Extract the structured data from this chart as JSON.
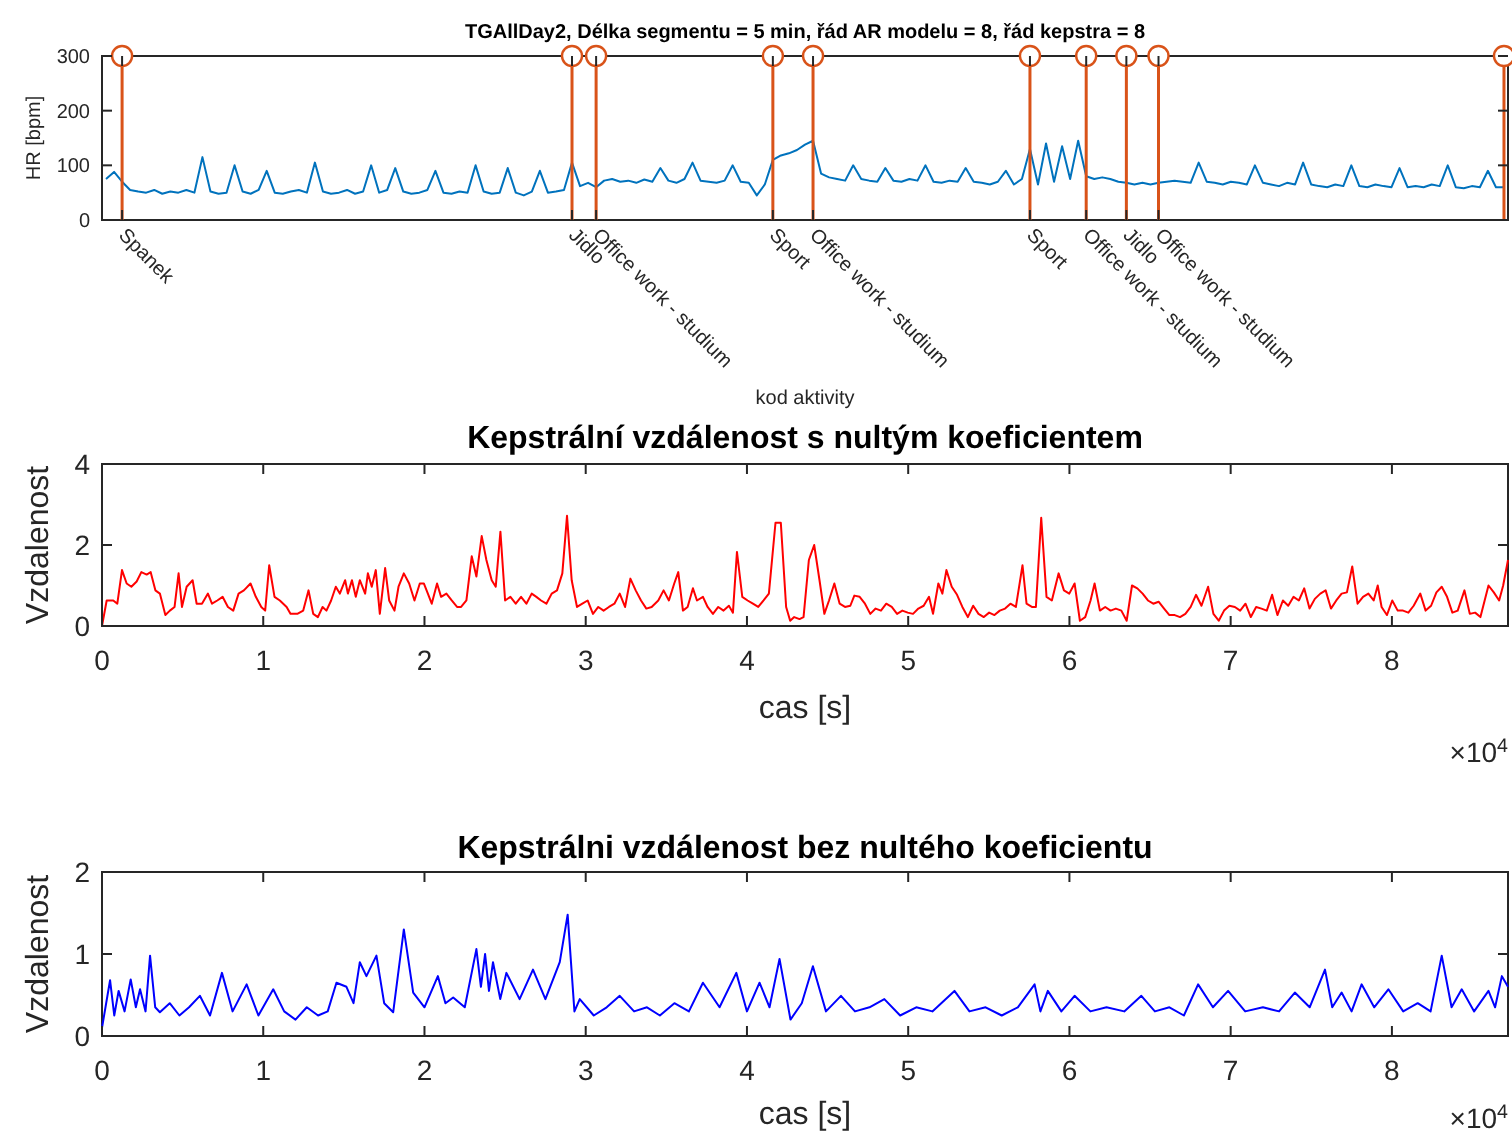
{
  "chart_data": [
    {
      "type": "line",
      "title": "TGAllDay2, Délka segmentu = 5 min, řád AR modelu = 8, řád kepstra = 8",
      "xlabel": "kod aktivity",
      "ylabel": "HR [bpm]",
      "ylim": [
        0,
        300
      ],
      "yticks": [
        0,
        100,
        200,
        300
      ],
      "categories": [
        null,
        null,
        "Spanek",
        null,
        null,
        null,
        null,
        null,
        null,
        null,
        null,
        null,
        null,
        null,
        null,
        null,
        null,
        null,
        null,
        null,
        null,
        null,
        null,
        null,
        null,
        null,
        null,
        null,
        null,
        null,
        null,
        null,
        null,
        null,
        null,
        null,
        null,
        null,
        null,
        null,
        null,
        null,
        null,
        null,
        null,
        null,
        null,
        null,
        null,
        null,
        null,
        null,
        null,
        null,
        null,
        null,
        null,
        null,
        "Jidlo",
        null,
        null,
        "Office work - studium",
        null,
        null,
        null,
        null,
        null,
        null,
        null,
        null,
        null,
        null,
        null,
        null,
        null,
        null,
        null,
        null,
        null,
        null,
        null,
        null,
        null,
        "Sport",
        null,
        null,
        null,
        null,
        "Office work - studium",
        null,
        null,
        null,
        null,
        null,
        null,
        null,
        null,
        null,
        null,
        null,
        null,
        null,
        null,
        null,
        null,
        null,
        null,
        null,
        null,
        null,
        null,
        null,
        null,
        null,
        null,
        "Sport",
        null,
        null,
        null,
        null,
        null,
        null,
        "Office work - studium",
        null,
        null,
        null,
        null,
        "Jidlo",
        null,
        null,
        null,
        "Office work - studium",
        null,
        null,
        null,
        null,
        null,
        null,
        null,
        null,
        null,
        null,
        null,
        null,
        null,
        null,
        null,
        null,
        null,
        null,
        null,
        null,
        null,
        null,
        null,
        null,
        null,
        null,
        null,
        null,
        null,
        null,
        null,
        null,
        null,
        null,
        null,
        null,
        null,
        null,
        null,
        null,
        null,
        null,
        null
      ],
      "series": [
        {
          "color": "#0072bd",
          "values": [
            75,
            88,
            70,
            55,
            52,
            50,
            55,
            48,
            52,
            50,
            55,
            50,
            115,
            52,
            48,
            50,
            100,
            52,
            48,
            55,
            90,
            50,
            48,
            52,
            55,
            50,
            105,
            52,
            48,
            50,
            55,
            48,
            52,
            100,
            50,
            55,
            95,
            52,
            48,
            50,
            55,
            90,
            50,
            48,
            52,
            50,
            100,
            52,
            48,
            50,
            95,
            50,
            45,
            52,
            90,
            50,
            52,
            55,
            105,
            62,
            68,
            60,
            72,
            75,
            70,
            72,
            68,
            74,
            70,
            95,
            72,
            68,
            75,
            105,
            72,
            70,
            68,
            72,
            100,
            70,
            68,
            45,
            65,
            110,
            118,
            122,
            128,
            138,
            145,
            85,
            78,
            75,
            72,
            100,
            75,
            72,
            70,
            95,
            72,
            70,
            75,
            72,
            100,
            70,
            68,
            72,
            70,
            95,
            70,
            68,
            65,
            70,
            90,
            65,
            75,
            130,
            65,
            140,
            70,
            135,
            75,
            145,
            80,
            75,
            78,
            75,
            70,
            68,
            65,
            68,
            65,
            68,
            70,
            72,
            70,
            68,
            105,
            70,
            68,
            65,
            70,
            68,
            65,
            100,
            68,
            65,
            62,
            68,
            65,
            105,
            65,
            62,
            60,
            65,
            62,
            100,
            62,
            60,
            65,
            62,
            60,
            95,
            60,
            62,
            60,
            65,
            62,
            100,
            60,
            58,
            62,
            60,
            90,
            60,
            60
          ]
        },
        {
          "type": "lollipop",
          "marker": "circle",
          "color": "#d95319",
          "values": [
            null,
            null,
            300,
            null,
            null,
            null,
            null,
            null,
            null,
            null,
            null,
            null,
            null,
            null,
            null,
            null,
            null,
            null,
            null,
            null,
            null,
            null,
            null,
            null,
            null,
            null,
            null,
            null,
            null,
            null,
            null,
            null,
            null,
            null,
            null,
            null,
            null,
            null,
            null,
            null,
            null,
            null,
            null,
            null,
            null,
            null,
            null,
            null,
            null,
            null,
            null,
            null,
            null,
            null,
            null,
            null,
            null,
            null,
            300,
            null,
            null,
            300,
            null,
            null,
            null,
            null,
            null,
            null,
            null,
            null,
            null,
            null,
            null,
            null,
            null,
            null,
            null,
            null,
            null,
            null,
            null,
            null,
            null,
            300,
            null,
            null,
            null,
            null,
            300,
            null,
            null,
            null,
            null,
            null,
            null,
            null,
            null,
            null,
            null,
            null,
            null,
            null,
            null,
            null,
            null,
            null,
            null,
            null,
            null,
            null,
            null,
            null,
            null,
            null,
            null,
            300,
            null,
            null,
            null,
            null,
            null,
            null,
            300,
            null,
            null,
            null,
            null,
            300,
            null,
            null,
            null,
            300,
            null,
            null,
            null,
            null,
            null,
            null,
            null,
            null,
            null,
            null,
            null,
            null,
            null,
            null,
            null,
            null,
            null,
            null,
            null,
            null,
            null,
            null,
            null,
            null,
            null,
            null,
            null,
            null,
            null,
            null,
            null,
            null,
            null,
            null,
            null,
            null,
            null,
            null,
            null,
            null,
            null,
            null,
            300
          ]
        }
      ]
    },
    {
      "type": "line",
      "title": "Kepstrální vzdálenost s nultým koeficientem",
      "xlabel": "cas [s]",
      "ylabel": "Vzdalenost",
      "xlim": [
        0,
        8.72
      ],
      "ylim": [
        0,
        4
      ],
      "yticks": [
        0,
        2,
        4
      ],
      "xticks": [
        0,
        1,
        2,
        3,
        4,
        5,
        6,
        7,
        8
      ],
      "annotations": [
        "×10$^{4}$"
      ],
      "series": [
        {
          "color": "#ff0000",
          "x": [
            0,
            0.029,
            0.07,
            0.095,
            0.124,
            0.153,
            0.182,
            0.215,
            0.244,
            0.277,
            0.302,
            0.331,
            0.359,
            0.393,
            0.421,
            0.45,
            0.475,
            0.496,
            0.525,
            0.562,
            0.587,
            0.62,
            0.657,
            0.682,
            0.715,
            0.748,
            0.781,
            0.814,
            0.847,
            0.88,
            0.921,
            0.954,
            0.988,
            1.012,
            1.037,
            1.07,
            1.103,
            1.145,
            1.169,
            1.211,
            1.248,
            1.281,
            1.31,
            1.339,
            1.368,
            1.392,
            1.421,
            1.45,
            1.475,
            1.508,
            1.525,
            1.55,
            1.574,
            1.599,
            1.632,
            1.649,
            1.673,
            1.698,
            1.723,
            1.756,
            1.781,
            1.814,
            1.839,
            1.872,
            1.905,
            1.938,
            1.971,
            1.996,
            2.021,
            2.045,
            2.078,
            2.103,
            2.136,
            2.169,
            2.202,
            2.227,
            2.26,
            2.293,
            2.322,
            2.355,
            2.384,
            2.417,
            2.442,
            2.471,
            2.5,
            2.533,
            2.566,
            2.599,
            2.632,
            2.665,
            2.694,
            2.723,
            2.756,
            2.789,
            2.822,
            2.855,
            2.884,
            2.913,
            2.946,
            2.979,
            3.012,
            3.045,
            3.078,
            3.111,
            3.144,
            3.178,
            3.211,
            3.244,
            3.277,
            3.31,
            3.343,
            3.376,
            3.409,
            3.45,
            3.483,
            3.516,
            3.549,
            3.574,
            3.603,
            3.632,
            3.665,
            3.69,
            3.727,
            3.756,
            3.789,
            3.822,
            3.855,
            3.888,
            3.913,
            3.938,
            3.971,
            4.004,
            4.037,
            4.07,
            4.103,
            4.136,
            4.177,
            4.21,
            4.243,
            4.268,
            4.293,
            4.326,
            4.351,
            4.384,
            4.417,
            4.45,
            4.48,
            4.509,
            4.542,
            4.575,
            4.608,
            4.641,
            4.666,
            4.699,
            4.732,
            4.765,
            4.798,
            4.831,
            4.864,
            4.898,
            4.931,
            4.964,
            4.997,
            5.03,
            5.063,
            5.096,
            5.129,
            5.154,
            5.187,
            5.212,
            5.237,
            5.27,
            5.303,
            5.336,
            5.37,
            5.403,
            5.436,
            5.469,
            5.502,
            5.535,
            5.568,
            5.601,
            5.634,
            5.668,
            5.709,
            5.734,
            5.767,
            5.792,
            5.825,
            5.858,
            5.891,
            5.933,
            5.966,
            5.999,
            6.032,
            6.065,
            6.098,
            6.131,
            6.156,
            6.189,
            6.222,
            6.255,
            6.288,
            6.322,
            6.355,
            6.388,
            6.421,
            6.454,
            6.487,
            6.52,
            6.553,
            6.587,
            6.62,
            6.653,
            6.686,
            6.719,
            6.752,
            6.785,
            6.819,
            6.86,
            6.893,
            6.926,
            6.959,
            6.992,
            7.026,
            7.059,
            7.092,
            7.125,
            7.158,
            7.191,
            7.224,
            7.257,
            7.29,
            7.324,
            7.357,
            7.39,
            7.423,
            7.456,
            7.489,
            7.522,
            7.556,
            7.589,
            7.622,
            7.655,
            7.688,
            7.721,
            7.754,
            7.787,
            7.821,
            7.854,
            7.887,
            7.912,
            7.936,
            7.969,
            8.002,
            8.036,
            8.069,
            8.102,
            8.135,
            8.176,
            8.209,
            8.243,
            8.276,
            8.309,
            8.342,
            8.375,
            8.408,
            8.45,
            8.483,
            8.516,
            8.549,
            8.599,
            8.632,
            8.665,
            8.69,
            8.72
          ],
          "values": [
            0,
            0.63,
            0.63,
            0.55,
            1.38,
            1.05,
            0.97,
            1.1,
            1.33,
            1.27,
            1.33,
            0.88,
            0.8,
            0.27,
            0.38,
            0.47,
            1.3,
            0.47,
            0.97,
            1.13,
            0.55,
            0.55,
            0.8,
            0.55,
            0.63,
            0.72,
            0.47,
            0.38,
            0.8,
            0.88,
            1.05,
            0.72,
            0.47,
            0.38,
            1.5,
            0.72,
            0.63,
            0.47,
            0.3,
            0.3,
            0.38,
            0.88,
            0.3,
            0.22,
            0.47,
            0.38,
            0.63,
            0.97,
            0.8,
            1.13,
            0.8,
            1.13,
            0.72,
            1.13,
            0.8,
            1.3,
            0.97,
            1.38,
            0.3,
            1.43,
            0.63,
            0.38,
            0.97,
            1.3,
            1.05,
            0.63,
            1.05,
            1.05,
            0.8,
            0.55,
            1.05,
            0.72,
            0.8,
            0.63,
            0.47,
            0.47,
            0.63,
            1.72,
            1.22,
            2.22,
            1.63,
            1.13,
            0.97,
            2.33,
            0.63,
            0.72,
            0.55,
            0.72,
            0.55,
            0.8,
            0.72,
            0.63,
            0.55,
            0.8,
            0.88,
            1.3,
            2.72,
            1.13,
            0.47,
            0.55,
            0.63,
            0.3,
            0.47,
            0.38,
            0.47,
            0.55,
            0.8,
            0.47,
            1.17,
            0.88,
            0.63,
            0.43,
            0.47,
            0.63,
            0.88,
            0.63,
            1.05,
            1.33,
            0.38,
            0.47,
            0.93,
            0.63,
            0.72,
            0.47,
            0.3,
            0.47,
            0.38,
            0.5,
            0.33,
            1.83,
            0.72,
            0.63,
            0.55,
            0.47,
            0.63,
            0.8,
            2.55,
            2.55,
            0.47,
            0.13,
            0.22,
            0.17,
            0.22,
            1.63,
            2.0,
            1.13,
            0.3,
            0.63,
            1.05,
            0.55,
            0.47,
            0.5,
            0.75,
            0.72,
            0.55,
            0.3,
            0.43,
            0.38,
            0.55,
            0.47,
            0.3,
            0.38,
            0.33,
            0.3,
            0.43,
            0.5,
            0.72,
            0.3,
            1.05,
            0.8,
            1.38,
            0.97,
            0.77,
            0.47,
            0.22,
            0.5,
            0.3,
            0.22,
            0.33,
            0.27,
            0.38,
            0.43,
            0.55,
            0.47,
            1.5,
            0.55,
            0.47,
            0.47,
            2.67,
            0.72,
            0.63,
            1.3,
            0.88,
            0.8,
            1.05,
            0.13,
            0.22,
            0.63,
            1.05,
            0.38,
            0.47,
            0.38,
            0.43,
            0.38,
            0.13,
            1.0,
            0.93,
            0.8,
            0.63,
            0.55,
            0.6,
            0.43,
            0.27,
            0.27,
            0.22,
            0.3,
            0.47,
            0.77,
            0.5,
            0.97,
            0.3,
            0.13,
            0.38,
            0.5,
            0.47,
            0.38,
            0.55,
            0.22,
            0.47,
            0.43,
            0.38,
            0.77,
            0.27,
            0.63,
            0.5,
            0.72,
            0.63,
            0.93,
            0.43,
            0.67,
            0.8,
            0.88,
            0.43,
            0.63,
            0.8,
            0.83,
            1.47,
            0.55,
            0.72,
            0.8,
            0.63,
            1.0,
            0.47,
            0.27,
            0.63,
            0.38,
            0.38,
            0.33,
            0.5,
            0.8,
            0.38,
            0.5,
            0.83,
            0.97,
            0.72,
            0.33,
            0.38,
            0.88,
            0.3,
            0.33,
            0.22,
            1.0,
            0.83,
            0.63,
            1.0,
            1.63
          ]
        }
      ]
    },
    {
      "type": "line",
      "title": "Kepstrálni vzdálenost bez nultého koeficientu",
      "xlabel": "cas [s]",
      "ylabel": "Vzdalenost",
      "xlim": [
        0,
        8.72
      ],
      "ylim": [
        0,
        2
      ],
      "yticks": [
        0,
        1,
        2
      ],
      "xticks": [
        0,
        1,
        2,
        3,
        4,
        5,
        6,
        7,
        8
      ],
      "annotations": [
        "×10$^{4}$"
      ],
      "series": [
        {
          "color": "#0000ff",
          "x": [
            0,
            0.05,
            0.076,
            0.103,
            0.14,
            0.178,
            0.21,
            0.236,
            0.27,
            0.298,
            0.33,
            0.359,
            0.42,
            0.48,
            0.54,
            0.607,
            0.67,
            0.744,
            0.81,
            0.897,
            0.97,
            1.062,
            1.13,
            1.2,
            1.27,
            1.34,
            1.4,
            1.454,
            1.516,
            1.56,
            1.599,
            1.64,
            1.702,
            1.75,
            1.806,
            1.872,
            1.93,
            2.0,
            2.083,
            2.13,
            2.178,
            2.25,
            2.322,
            2.35,
            2.376,
            2.4,
            2.425,
            2.47,
            2.508,
            2.59,
            2.673,
            2.75,
            2.839,
            2.888,
            2.93,
            2.963,
            3.05,
            3.13,
            3.211,
            3.3,
            3.38,
            3.46,
            3.55,
            3.64,
            3.727,
            3.83,
            3.934,
            4.0,
            4.078,
            4.14,
            4.202,
            4.27,
            4.34,
            4.409,
            4.49,
            4.583,
            4.67,
            4.76,
            4.852,
            4.95,
            5.05,
            5.15,
            5.287,
            5.38,
            5.48,
            5.58,
            5.68,
            5.784,
            5.82,
            5.866,
            5.95,
            6.032,
            6.13,
            6.23,
            6.34,
            6.446,
            6.53,
            6.62,
            6.71,
            6.798,
            6.89,
            6.984,
            7.09,
            7.2,
            7.3,
            7.398,
            7.49,
            7.585,
            7.63,
            7.688,
            7.75,
            7.812,
            7.89,
            7.978,
            8.07,
            8.16,
            8.24,
            8.309,
            8.37,
            8.433,
            8.51,
            8.599,
            8.64,
            8.682,
            8.72
          ],
          "values": [
            0.1,
            0.68,
            0.25,
            0.55,
            0.3,
            0.69,
            0.35,
            0.57,
            0.3,
            0.98,
            0.35,
            0.29,
            0.4,
            0.25,
            0.35,
            0.49,
            0.25,
            0.77,
            0.3,
            0.63,
            0.25,
            0.57,
            0.3,
            0.2,
            0.35,
            0.25,
            0.3,
            0.65,
            0.6,
            0.4,
            0.9,
            0.73,
            0.98,
            0.4,
            0.29,
            1.3,
            0.53,
            0.35,
            0.73,
            0.4,
            0.47,
            0.35,
            1.06,
            0.6,
            1.0,
            0.55,
            0.9,
            0.45,
            0.77,
            0.45,
            0.81,
            0.45,
            0.9,
            1.48,
            0.3,
            0.45,
            0.25,
            0.35,
            0.49,
            0.3,
            0.35,
            0.25,
            0.4,
            0.3,
            0.65,
            0.35,
            0.77,
            0.3,
            0.65,
            0.35,
            0.94,
            0.2,
            0.4,
            0.85,
            0.3,
            0.49,
            0.3,
            0.35,
            0.45,
            0.25,
            0.35,
            0.3,
            0.55,
            0.3,
            0.35,
            0.25,
            0.35,
            0.63,
            0.3,
            0.55,
            0.3,
            0.49,
            0.3,
            0.35,
            0.3,
            0.49,
            0.3,
            0.35,
            0.25,
            0.63,
            0.35,
            0.55,
            0.3,
            0.35,
            0.3,
            0.53,
            0.35,
            0.81,
            0.35,
            0.53,
            0.3,
            0.63,
            0.35,
            0.57,
            0.3,
            0.4,
            0.3,
            0.98,
            0.35,
            0.57,
            0.3,
            0.55,
            0.35,
            0.73,
            0.6
          ]
        }
      ]
    }
  ]
}
